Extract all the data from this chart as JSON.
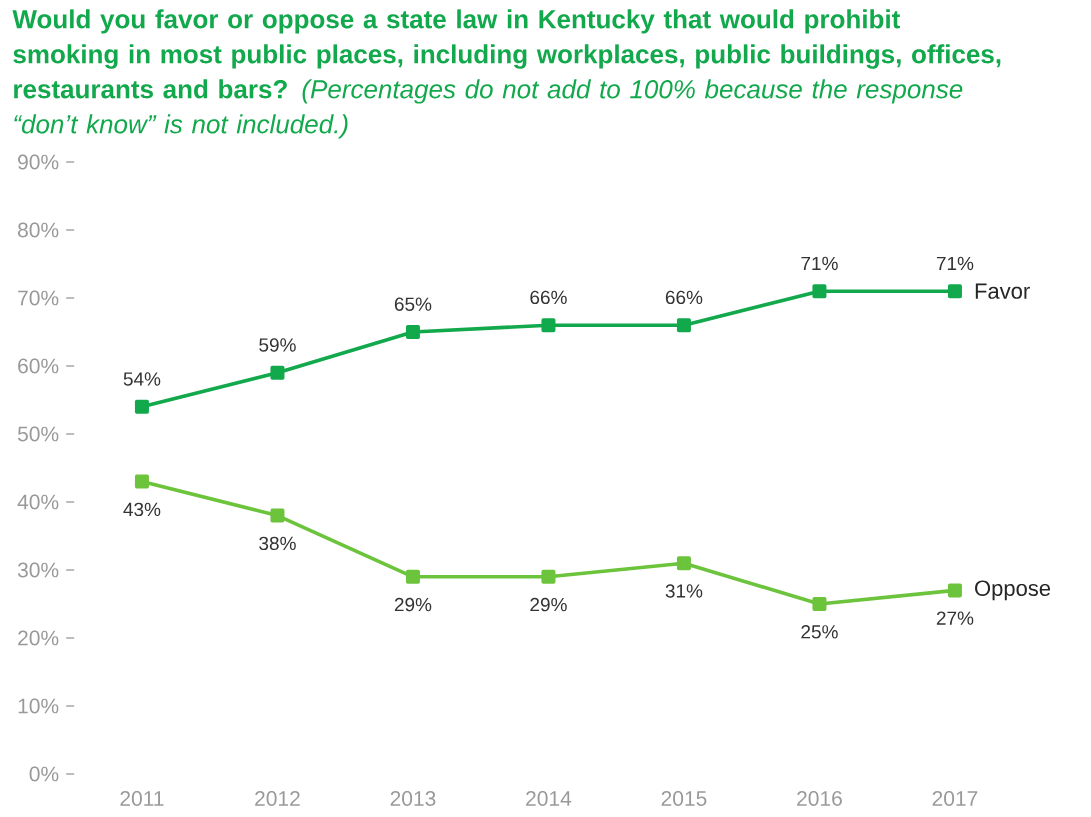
{
  "chart_data": {
    "type": "line",
    "title": "**Would you favor or oppose a state law in Kentucky that would prohibit smoking in most public places, including workplaces, public buildings, offices, restaurants and bars?** *(Percentages do not add to 100% because the response “don’t know” is not included.)*",
    "categories": [
      "2011",
      "2012",
      "2013",
      "2014",
      "2015",
      "2016",
      "2017"
    ],
    "series": [
      {
        "name": "Favor",
        "color": "#12a84c",
        "values": [
          54,
          59,
          65,
          66,
          66,
          71,
          71
        ],
        "value_labels": [
          "54%",
          "59%",
          "65%",
          "66%",
          "66%",
          "71%",
          "71%"
        ]
      },
      {
        "name": "Oppose",
        "color": "#6cc33c",
        "values": [
          43,
          38,
          29,
          29,
          31,
          25,
          27
        ],
        "value_labels": [
          "43%",
          "38%",
          "29%",
          "29%",
          "31%",
          "25%",
          "27%"
        ]
      }
    ],
    "ylim": [
      0,
      90
    ],
    "yticks": [
      {
        "value": 0,
        "label": "0%"
      },
      {
        "value": 10,
        "label": "10%"
      },
      {
        "value": 20,
        "label": "20%"
      },
      {
        "value": 30,
        "label": "30%"
      },
      {
        "value": 40,
        "label": "40%"
      },
      {
        "value": 50,
        "label": "50%"
      },
      {
        "value": 60,
        "label": "60%"
      },
      {
        "value": 70,
        "label": "70%"
      },
      {
        "value": 80,
        "label": "80%"
      },
      {
        "value": 90,
        "label": "90%"
      }
    ],
    "grid": false,
    "marker": "square",
    "line_style": "solid"
  }
}
